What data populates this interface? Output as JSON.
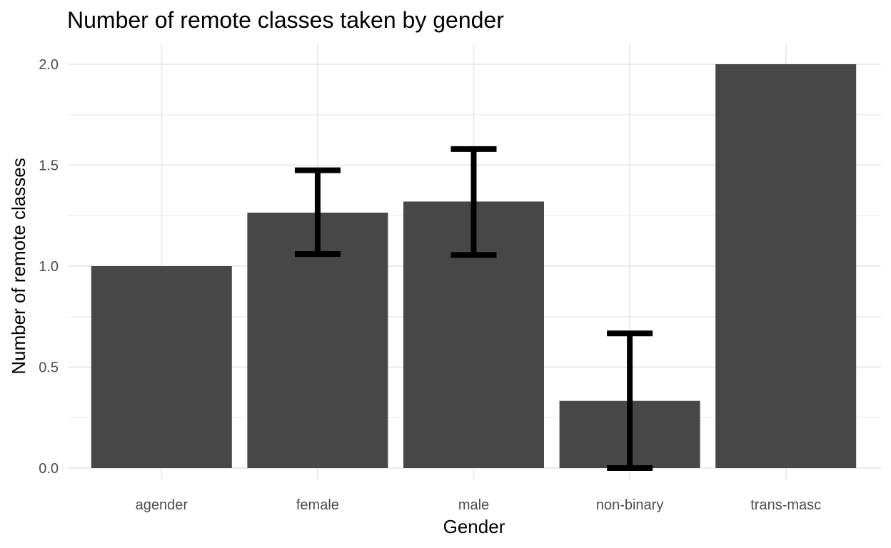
{
  "chart_data": {
    "type": "bar",
    "title": "Number of remote classes taken by gender",
    "xlabel": "Gender",
    "ylabel": "Number of remote classes",
    "categories": [
      "agender",
      "female",
      "male",
      "non-binary",
      "trans-masc"
    ],
    "values": [
      1.0,
      1.265,
      1.32,
      0.333,
      2.0
    ],
    "error_bars": [
      null,
      {
        "lower": 1.06,
        "upper": 1.475
      },
      {
        "lower": 1.055,
        "upper": 1.58
      },
      {
        "lower": 0.0,
        "upper": 0.667
      },
      null
    ],
    "ylim": [
      0,
      2.0
    ],
    "yticks": [
      0.0,
      0.5,
      1.0,
      1.5,
      2.0
    ],
    "ytick_labels": [
      "0.0",
      "0.5",
      "1.0",
      "1.5",
      "2.0"
    ],
    "grid": true,
    "legend": "none",
    "colors": {
      "bar": "#474747",
      "error_bar": "#000000",
      "grid": "#ebebeb"
    }
  }
}
